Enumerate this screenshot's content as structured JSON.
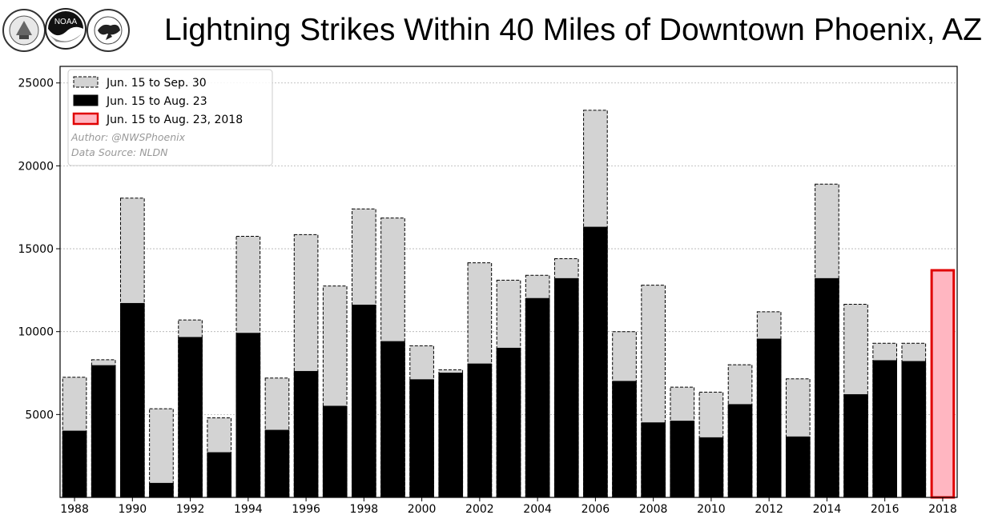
{
  "header": {
    "title": "Lightning Strikes Within 40 Miles of Downtown Phoenix, AZ",
    "logos": [
      "United States Department of Commerce seal",
      "NOAA logo",
      "National Weather Service logo"
    ]
  },
  "chart_data": {
    "type": "bar",
    "title": "Lightning Strikes Within 40 Miles of Downtown Phoenix, AZ",
    "xlabel": "",
    "ylabel": "",
    "ylim": [
      0,
      26000
    ],
    "yticks": [
      5000,
      10000,
      15000,
      20000,
      25000
    ],
    "xtick_labels": [
      "1988",
      "1990",
      "1992",
      "1994",
      "1996",
      "1998",
      "2000",
      "2002",
      "2004",
      "2006",
      "2008",
      "2010",
      "2012",
      "2014",
      "2016",
      "2018"
    ],
    "categories": [
      "1988",
      "1989",
      "1990",
      "1991",
      "1992",
      "1993",
      "1994",
      "1995",
      "1996",
      "1997",
      "1998",
      "1999",
      "2000",
      "2001",
      "2002",
      "2003",
      "2004",
      "2005",
      "2006",
      "2007",
      "2008",
      "2009",
      "2010",
      "2011",
      "2012",
      "2013",
      "2014",
      "2015",
      "2016",
      "2017",
      "2018"
    ],
    "grid": "horizontal",
    "legend_position": "top-left",
    "annotations": [
      "Author: @NWSPhoenix",
      "Data Source: NLDN"
    ],
    "series": [
      {
        "name": "Jun. 15 to Sep. 30",
        "color": "#d3d3d3",
        "style": "dashed-outline",
        "values": [
          7250,
          8300,
          18050,
          5350,
          10700,
          4800,
          15750,
          7200,
          15850,
          12750,
          17400,
          16850,
          9150,
          7700,
          14150,
          13100,
          13400,
          14400,
          23350,
          10000,
          12800,
          6650,
          6350,
          8000,
          11200,
          7150,
          18900,
          11650,
          9300,
          9300,
          null
        ]
      },
      {
        "name": "Jun. 15 to Aug. 23",
        "color": "#000000",
        "style": "solid",
        "values": [
          4000,
          7950,
          11700,
          850,
          9650,
          2700,
          9900,
          4050,
          7600,
          5500,
          11600,
          9400,
          7100,
          7500,
          8050,
          9000,
          12000,
          13200,
          16300,
          7000,
          4500,
          4600,
          3600,
          5600,
          9550,
          3650,
          13200,
          6200,
          8250,
          8200,
          null
        ]
      },
      {
        "name": "Jun. 15 to Aug. 23, 2018",
        "color": "#ffb6c1",
        "edge_color": "#e00000",
        "style": "highlight",
        "values": [
          null,
          null,
          null,
          null,
          null,
          null,
          null,
          null,
          null,
          null,
          null,
          null,
          null,
          null,
          null,
          null,
          null,
          null,
          null,
          null,
          null,
          null,
          null,
          null,
          null,
          null,
          null,
          null,
          null,
          null,
          13700
        ]
      }
    ]
  }
}
